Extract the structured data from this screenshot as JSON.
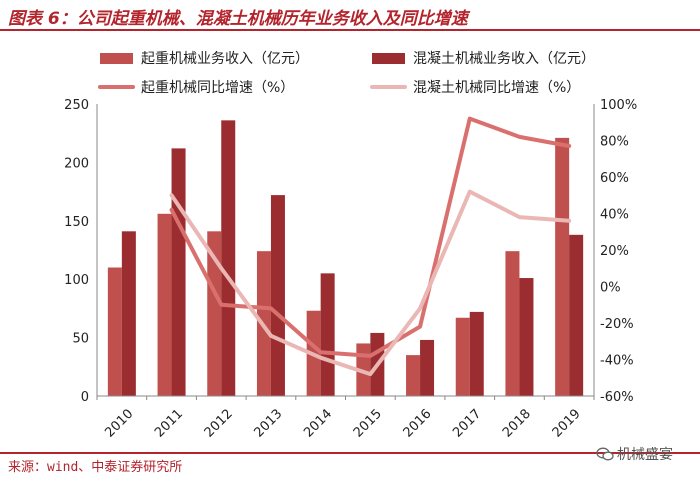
{
  "header": {
    "title": "图表 6：公司起重机械、混凝土机械历年业务收入及同比增速"
  },
  "footer": {
    "source": "来源：wind、中泰证券研究所",
    "watermark": "机械盛宴"
  },
  "colors": {
    "bar_crane": "#c0504d",
    "bar_concrete": "#9b2d30",
    "line_crane": "#d9706e",
    "line_concrete": "#eab7b5",
    "accent": "#b3242c"
  },
  "chart_data": {
    "type": "bar",
    "categories": [
      "2010",
      "2011",
      "2012",
      "2013",
      "2014",
      "2015",
      "2016",
      "2017",
      "2018",
      "2019"
    ],
    "series": [
      {
        "name": "起重机械业务收入（亿元）",
        "kind": "bar",
        "axis": "left",
        "values": [
          110,
          156,
          141,
          124,
          73,
          45,
          35,
          67,
          124,
          221
        ]
      },
      {
        "name": "混凝土机械业务收入（亿元）",
        "kind": "bar",
        "axis": "left",
        "values": [
          141,
          212,
          236,
          172,
          105,
          54,
          48,
          72,
          101,
          138
        ]
      },
      {
        "name": "起重机械同比增速（%）",
        "kind": "line",
        "axis": "right",
        "values": [
          null,
          42,
          -10,
          -12,
          -36,
          -38,
          -22,
          92,
          82,
          77
        ]
      },
      {
        "name": "混凝土机械同比增速（%）",
        "kind": "line",
        "axis": "right",
        "values": [
          null,
          50,
          10,
          -27,
          -39,
          -48,
          -12,
          52,
          38,
          36
        ]
      }
    ],
    "y_left": {
      "min": 0,
      "max": 250,
      "ticks": [
        0,
        50,
        100,
        150,
        200,
        250
      ]
    },
    "y_right": {
      "min": -60,
      "max": 100,
      "ticks": [
        -60,
        -40,
        -20,
        0,
        20,
        40,
        60,
        80,
        100
      ],
      "tick_labels": [
        "-60%",
        "-40%",
        "-20%",
        "0%",
        "20%",
        "40%",
        "60%",
        "80%",
        "100%"
      ]
    },
    "grid": false,
    "legend": {
      "position": "top",
      "columns": 2
    }
  }
}
